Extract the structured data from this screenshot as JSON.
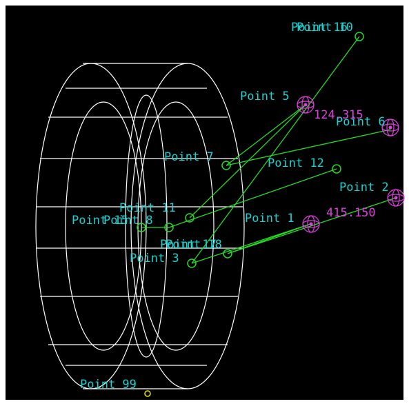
{
  "labels": [
    "Point 16",
    "Point 10",
    "Point 5",
    "Point 6",
    "Point 7",
    "Point 12",
    "Point 2",
    "Point 11",
    "Point 15",
    "Point 8",
    "Point 1",
    "Point 17",
    "Point 18",
    "Point 3",
    "Point 99"
  ],
  "dimensions": [
    "124.315",
    "415.150"
  ]
}
